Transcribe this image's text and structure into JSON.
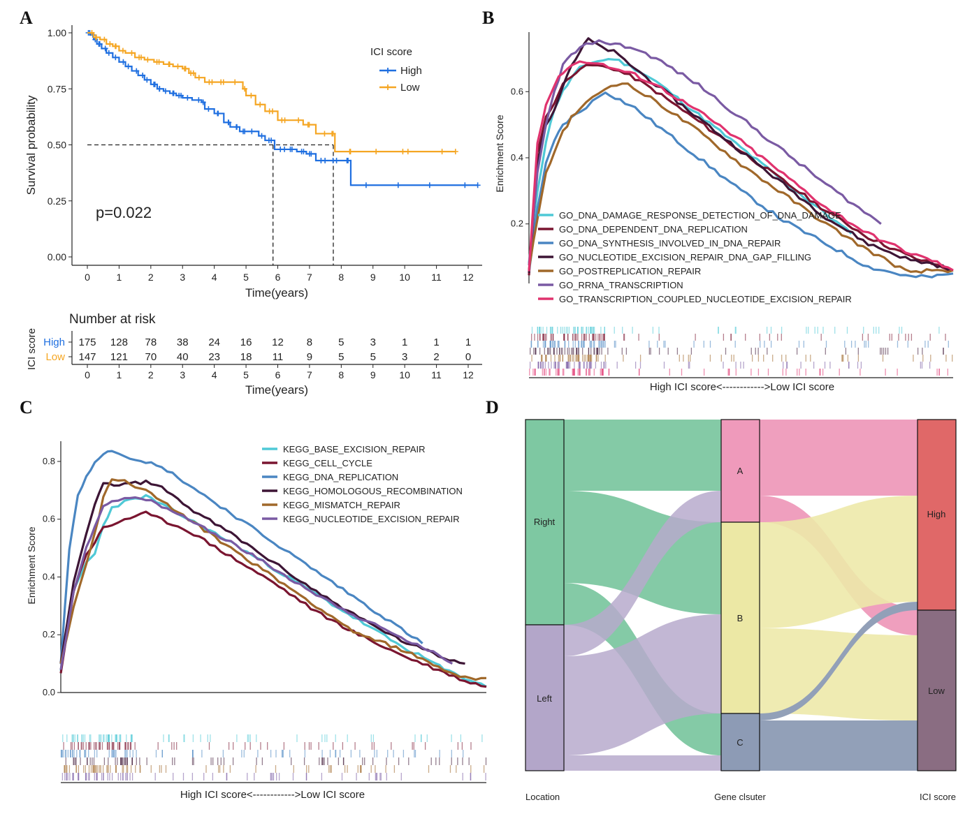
{
  "panel_labels": [
    "A",
    "B",
    "C",
    "D"
  ],
  "colors": {
    "high": "#1f6fe0",
    "low": "#f5a623"
  },
  "chart_data": [
    {
      "panel": "A",
      "type": "line",
      "subtype": "kaplan-meier",
      "xlabel": "Time(years)",
      "ylabel": "Survival probability",
      "xticks": [
        "0",
        "1",
        "2",
        "3",
        "4",
        "5",
        "6",
        "7",
        "8",
        "9",
        "10",
        "11",
        "12"
      ],
      "yticks": [
        "0.00",
        "0.25",
        "0.50",
        "0.75",
        "1.00"
      ],
      "xlim": [
        0,
        12.4
      ],
      "ylim": [
        0,
        1
      ],
      "annotation": "p=0.022",
      "legend_title": "ICI score",
      "median_lines": {
        "y": 0.5,
        "x": [
          5.85,
          7.75
        ]
      },
      "series": [
        {
          "name": "High",
          "color": "#1f6fe0",
          "x": [
            0,
            0.1,
            0.2,
            0.3,
            0.45,
            0.6,
            0.8,
            1.0,
            1.2,
            1.4,
            1.6,
            1.8,
            2.0,
            2.2,
            2.4,
            2.6,
            2.8,
            3.0,
            3.3,
            3.6,
            3.7,
            4.0,
            4.3,
            4.5,
            4.8,
            5.0,
            5.4,
            5.6,
            5.9,
            6.3,
            6.6,
            6.9,
            7.2,
            7.6,
            8.0,
            8.3,
            9.0,
            10.0,
            11.0,
            12.3
          ],
          "y": [
            1.0,
            0.99,
            0.97,
            0.95,
            0.93,
            0.91,
            0.89,
            0.87,
            0.85,
            0.83,
            0.81,
            0.79,
            0.77,
            0.75,
            0.74,
            0.73,
            0.72,
            0.71,
            0.7,
            0.69,
            0.66,
            0.64,
            0.6,
            0.58,
            0.56,
            0.56,
            0.54,
            0.52,
            0.48,
            0.48,
            0.47,
            0.46,
            0.43,
            0.43,
            0.43,
            0.32,
            0.32,
            0.32,
            0.32,
            0.32
          ]
        },
        {
          "name": "Low",
          "color": "#f5a623",
          "x": [
            0,
            0.2,
            0.4,
            0.6,
            0.8,
            1.0,
            1.2,
            1.5,
            1.8,
            2.1,
            2.4,
            2.7,
            3.0,
            3.2,
            3.4,
            3.7,
            4.0,
            4.4,
            4.9,
            5.0,
            5.3,
            5.6,
            6.0,
            6.4,
            6.8,
            7.2,
            7.6,
            7.8,
            8.5,
            9.5,
            10.5,
            11.6
          ],
          "y": [
            1.0,
            0.98,
            0.97,
            0.95,
            0.94,
            0.92,
            0.91,
            0.89,
            0.88,
            0.87,
            0.86,
            0.85,
            0.84,
            0.82,
            0.8,
            0.78,
            0.78,
            0.78,
            0.75,
            0.72,
            0.68,
            0.65,
            0.61,
            0.61,
            0.59,
            0.55,
            0.55,
            0.47,
            0.47,
            0.47,
            0.47,
            0.47
          ]
        }
      ],
      "risk_table": {
        "title": "Number at risk",
        "ylabel": "ICI score",
        "xlabel": "Time(years)",
        "rows": [
          {
            "name": "High",
            "color": "#1f6fe0",
            "values": [
              "175",
              "128",
              "78",
              "38",
              "24",
              "16",
              "12",
              "8",
              "5",
              "3",
              "1",
              "1",
              "1"
            ]
          },
          {
            "name": "Low",
            "color": "#f5a623",
            "values": [
              "147",
              "121",
              "70",
              "40",
              "23",
              "18",
              "11",
              "9",
              "5",
              "5",
              "3",
              "2",
              "0"
            ]
          }
        ]
      }
    },
    {
      "panel": "B",
      "type": "line",
      "subtype": "gsea",
      "ylabel": "Enrichment Score",
      "xlabel": "High ICI score<------------>Low ICI score",
      "yticks": [
        "0.2",
        "0.4",
        "0.6"
      ],
      "ylim": [
        0.02,
        0.78
      ],
      "series": [
        {
          "name": "GO_DNA_DAMAGE_RESPONSE_DETECTION_OF_DNA_DAMAGE",
          "color": "#4fc9d6",
          "x": [
            0,
            0.02,
            0.04,
            0.06,
            0.08,
            0.1,
            0.12,
            0.15,
            0.2,
            0.25,
            0.3,
            0.35,
            0.4,
            0.5,
            0.6,
            0.7,
            0.76
          ],
          "y": [
            0.08,
            0.3,
            0.45,
            0.55,
            0.6,
            0.64,
            0.67,
            0.69,
            0.7,
            0.67,
            0.63,
            0.58,
            0.53,
            0.43,
            0.33,
            0.23,
            0.17
          ]
        },
        {
          "name": "GO_DNA_DEPENDENT_DNA_REPLICATION",
          "color": "#7a1530",
          "x": [
            0,
            0.02,
            0.04,
            0.06,
            0.08,
            0.1,
            0.12,
            0.15,
            0.2,
            0.25,
            0.3,
            0.4,
            0.5,
            0.6,
            0.7,
            0.8,
            0.9,
            0.95,
            1.0
          ],
          "y": [
            0.05,
            0.42,
            0.52,
            0.57,
            0.62,
            0.65,
            0.67,
            0.68,
            0.67,
            0.64,
            0.6,
            0.51,
            0.42,
            0.33,
            0.24,
            0.16,
            0.1,
            0.08,
            0.06
          ]
        },
        {
          "name": "GO_DNA_SYNTHESIS_INVOLVED_IN_DNA_REPAIR",
          "color": "#4a86c2",
          "x": [
            0,
            0.02,
            0.04,
            0.06,
            0.08,
            0.1,
            0.12,
            0.15,
            0.18,
            0.25,
            0.3,
            0.4,
            0.5,
            0.6,
            0.7,
            0.8,
            0.9,
            0.95,
            1.0
          ],
          "y": [
            0.05,
            0.25,
            0.38,
            0.45,
            0.5,
            0.52,
            0.54,
            0.57,
            0.6,
            0.55,
            0.5,
            0.4,
            0.3,
            0.21,
            0.14,
            0.07,
            0.04,
            0.04,
            0.05
          ]
        },
        {
          "name": "GO_NUCLEOTIDE_EXCISION_REPAIR_DNA_GAP_FILLING",
          "color": "#3d1535",
          "x": [
            0,
            0.02,
            0.04,
            0.06,
            0.08,
            0.1,
            0.12,
            0.14,
            0.16,
            0.2,
            0.25,
            0.3,
            0.4,
            0.5,
            0.6,
            0.7,
            0.8,
            0.9,
            0.95,
            1.0
          ],
          "y": [
            0.05,
            0.38,
            0.5,
            0.55,
            0.62,
            0.68,
            0.72,
            0.76,
            0.74,
            0.72,
            0.67,
            0.62,
            0.52,
            0.42,
            0.32,
            0.22,
            0.14,
            0.09,
            0.08,
            0.06
          ]
        },
        {
          "name": "GO_POSTREPLICATION_REPAIR",
          "color": "#a0682a",
          "x": [
            0,
            0.02,
            0.04,
            0.06,
            0.08,
            0.1,
            0.12,
            0.15,
            0.18,
            0.22,
            0.3,
            0.4,
            0.5,
            0.6,
            0.7,
            0.8,
            0.9,
            0.95,
            1.0
          ],
          "y": [
            0.06,
            0.22,
            0.35,
            0.42,
            0.48,
            0.52,
            0.55,
            0.58,
            0.61,
            0.63,
            0.57,
            0.48,
            0.38,
            0.29,
            0.2,
            0.12,
            0.05,
            0.06,
            0.06
          ]
        },
        {
          "name": "GO_RRNA_TRANSCRIPTION",
          "color": "#7a5aa3",
          "x": [
            0,
            0.02,
            0.04,
            0.06,
            0.08,
            0.1,
            0.12,
            0.15,
            0.18,
            0.25,
            0.3,
            0.4,
            0.5,
            0.6,
            0.7,
            0.83
          ],
          "y": [
            0.07,
            0.35,
            0.5,
            0.6,
            0.68,
            0.71,
            0.73,
            0.75,
            0.75,
            0.73,
            0.7,
            0.62,
            0.52,
            0.42,
            0.32,
            0.2
          ]
        },
        {
          "name": "GO_TRANSCRIPTION_COUPLED_NUCLEOTIDE_EXCISION_REPAIR",
          "color": "#e0336e",
          "x": [
            0,
            0.02,
            0.04,
            0.06,
            0.08,
            0.1,
            0.12,
            0.15,
            0.2,
            0.25,
            0.3,
            0.4,
            0.5,
            0.6,
            0.7,
            0.8,
            0.9,
            0.95,
            1.0
          ],
          "y": [
            0.06,
            0.45,
            0.56,
            0.62,
            0.66,
            0.68,
            0.69,
            0.69,
            0.67,
            0.65,
            0.62,
            0.54,
            0.45,
            0.35,
            0.25,
            0.17,
            0.11,
            0.09,
            0.06
          ]
        }
      ]
    },
    {
      "panel": "C",
      "type": "line",
      "subtype": "gsea",
      "ylabel": "Enrichment Score",
      "xlabel": "High ICI score<------------>Low ICI score",
      "yticks": [
        "0.0",
        "0.2",
        "0.4",
        "0.6",
        "0.8"
      ],
      "ylim": [
        0,
        0.87
      ],
      "series": [
        {
          "name": "KEGG_BASE_EXCISION_REPAIR",
          "color": "#4fc9d6",
          "x": [
            0,
            0.03,
            0.06,
            0.08,
            0.1,
            0.12,
            0.15,
            0.2,
            0.3,
            0.4,
            0.5,
            0.6,
            0.7,
            0.8,
            0.88,
            0.9,
            0.95,
            1.0
          ],
          "y": [
            0.08,
            0.35,
            0.45,
            0.48,
            0.58,
            0.64,
            0.66,
            0.68,
            0.6,
            0.52,
            0.43,
            0.34,
            0.25,
            0.16,
            0.1,
            0.08,
            0.05,
            0.02
          ]
        },
        {
          "name": "KEGG_CELL_CYCLE",
          "color": "#7a1530",
          "x": [
            0,
            0.03,
            0.06,
            0.08,
            0.1,
            0.12,
            0.15,
            0.2,
            0.3,
            0.4,
            0.5,
            0.6,
            0.7,
            0.8,
            0.9,
            0.95,
            1.0
          ],
          "y": [
            0.07,
            0.35,
            0.48,
            0.52,
            0.57,
            0.58,
            0.6,
            0.62,
            0.56,
            0.47,
            0.38,
            0.28,
            0.2,
            0.13,
            0.07,
            0.04,
            0.02
          ]
        },
        {
          "name": "KEGG_DNA_REPLICATION",
          "color": "#4a86c2",
          "x": [
            0,
            0.02,
            0.04,
            0.06,
            0.08,
            0.1,
            0.12,
            0.15,
            0.2,
            0.25,
            0.3,
            0.4,
            0.5,
            0.6,
            0.7,
            0.8,
            0.85
          ],
          "y": [
            0.1,
            0.5,
            0.68,
            0.75,
            0.8,
            0.83,
            0.84,
            0.82,
            0.8,
            0.77,
            0.72,
            0.62,
            0.52,
            0.42,
            0.32,
            0.22,
            0.17
          ]
        },
        {
          "name": "KEGG_HOMOLOGOUS_RECOMBINATION",
          "color": "#3d1535",
          "x": [
            0,
            0.03,
            0.06,
            0.08,
            0.1,
            0.15,
            0.2,
            0.25,
            0.3,
            0.4,
            0.5,
            0.6,
            0.7,
            0.8,
            0.9,
            0.95
          ],
          "y": [
            0.1,
            0.38,
            0.55,
            0.65,
            0.72,
            0.72,
            0.73,
            0.7,
            0.64,
            0.55,
            0.45,
            0.35,
            0.26,
            0.18,
            0.12,
            0.1
          ]
        },
        {
          "name": "KEGG_MISMATCH_REPAIR",
          "color": "#a0682a",
          "x": [
            0,
            0.03,
            0.06,
            0.08,
            0.1,
            0.12,
            0.15,
            0.2,
            0.3,
            0.4,
            0.5,
            0.6,
            0.7,
            0.8,
            0.9,
            0.95,
            1.0
          ],
          "y": [
            0.1,
            0.3,
            0.45,
            0.55,
            0.68,
            0.74,
            0.73,
            0.7,
            0.6,
            0.5,
            0.4,
            0.3,
            0.2,
            0.15,
            0.08,
            0.05,
            0.05
          ]
        },
        {
          "name": "KEGG_NUCLEOTIDE_EXCISION_REPAIR",
          "color": "#7a5aa3",
          "x": [
            0,
            0.03,
            0.06,
            0.08,
            0.1,
            0.12,
            0.15,
            0.2,
            0.3,
            0.4,
            0.5,
            0.6,
            0.7,
            0.8,
            0.9,
            0.92
          ],
          "y": [
            0.08,
            0.35,
            0.5,
            0.58,
            0.64,
            0.66,
            0.67,
            0.67,
            0.6,
            0.52,
            0.43,
            0.34,
            0.26,
            0.19,
            0.12,
            0.1
          ]
        }
      ]
    },
    {
      "panel": "D",
      "type": "sankey",
      "axes": [
        "Location",
        "Gene clsuter",
        "ICI score"
      ],
      "nodes": [
        {
          "name": "Right",
          "axis": 0,
          "color": "#7ec8a2"
        },
        {
          "name": "Left",
          "axis": 0,
          "color": "#b3a6c9"
        },
        {
          "name": "A",
          "axis": 1,
          "color": "#ef9abb"
        },
        {
          "name": "B",
          "axis": 1,
          "color": "#ece8a5"
        },
        {
          "name": "C",
          "axis": 1,
          "color": "#8d9bb5"
        },
        {
          "name": "High",
          "axis": 2,
          "color": "#e06868"
        },
        {
          "name": "Low",
          "axis": 2,
          "color": "#8a6d82"
        }
      ]
    }
  ]
}
